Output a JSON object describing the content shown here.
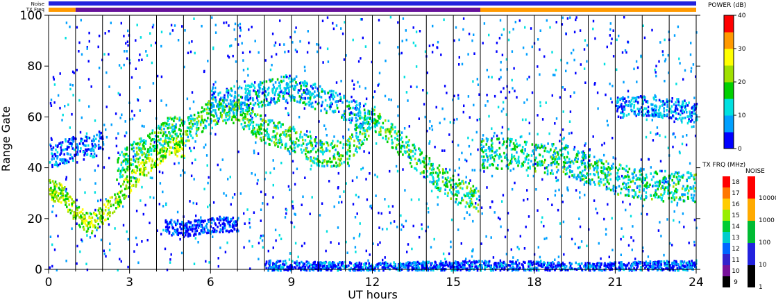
{
  "chart_data": {
    "type": "heatmap",
    "xlabel": "UT hours",
    "ylabel": "Range Gate",
    "xlim": [
      0,
      24
    ],
    "ylim": [
      0,
      100
    ],
    "x_ticks": [
      0,
      3,
      6,
      9,
      12,
      15,
      18,
      21,
      24
    ],
    "x_tick_labels": [
      "0",
      "3",
      "6",
      "9",
      "12",
      "15",
      "18",
      "21",
      "24"
    ],
    "y_ticks": [
      0,
      20,
      40,
      60,
      80,
      100
    ],
    "y_tick_labels": [
      "0",
      "20",
      "40",
      "60",
      "80",
      "100"
    ],
    "grid_vertical_hours": [
      1,
      2,
      3,
      4,
      5,
      6,
      7,
      8,
      9,
      10,
      11,
      12,
      13,
      14,
      15,
      16,
      17,
      18,
      19,
      20,
      21,
      22,
      23
    ],
    "strips": {
      "noise_label": "Noise",
      "txfreq_label": "TX Freq",
      "noise_color": "#2222dd",
      "txfreq_segments": [
        {
          "start": 0,
          "end": 1,
          "color": "#ff9900"
        },
        {
          "start": 1,
          "end": 16,
          "color": "#661199"
        },
        {
          "start": 16,
          "end": 24,
          "color": "#ff9900"
        }
      ]
    },
    "scatter_bands": [
      {
        "name": "",
        "points": [
          [
            0,
            32
          ],
          [
            0.5,
            30
          ],
          [
            1,
            22
          ],
          [
            1.5,
            18
          ],
          [
            2,
            22
          ],
          [
            2.5,
            28
          ],
          [
            3,
            35
          ],
          [
            3.5,
            40
          ],
          [
            4,
            45
          ],
          [
            4.5,
            50
          ],
          [
            5,
            48
          ]
        ],
        "width": 4,
        "power": 22
      },
      {
        "name": "",
        "points": [
          [
            2.5,
            40
          ],
          [
            3,
            45
          ],
          [
            3.5,
            48
          ],
          [
            4,
            52
          ],
          [
            4.5,
            56
          ],
          [
            5,
            55
          ],
          [
            5.5,
            58
          ],
          [
            6,
            63
          ],
          [
            7,
            62
          ],
          [
            8,
            55
          ],
          [
            9,
            52
          ],
          [
            10,
            46
          ],
          [
            11,
            46
          ],
          [
            12,
            60
          ],
          [
            13,
            50
          ],
          [
            14,
            40
          ],
          [
            15,
            32
          ],
          [
            15.9,
            28
          ]
        ],
        "width": 5,
        "power": 16
      },
      {
        "name": "",
        "points": [
          [
            6,
            66
          ],
          [
            7,
            67
          ],
          [
            8,
            70
          ],
          [
            9,
            72
          ],
          [
            10,
            68
          ],
          [
            11,
            64
          ],
          [
            12,
            58
          ]
        ],
        "width": 5,
        "power": 10
      },
      {
        "name": "",
        "points": [
          [
            16,
            46
          ],
          [
            17,
            46
          ],
          [
            18,
            44
          ],
          [
            19,
            44
          ],
          [
            20,
            40
          ],
          [
            21,
            36
          ],
          [
            22,
            34
          ],
          [
            23,
            33
          ],
          [
            24,
            33
          ]
        ],
        "width": 6,
        "power": 14
      },
      {
        "name": "",
        "points": [
          [
            21,
            64
          ],
          [
            22,
            65
          ],
          [
            23,
            64
          ],
          [
            24,
            62
          ]
        ],
        "width": 4,
        "power": 8
      },
      {
        "name": "",
        "points": [
          [
            4.3,
            18
          ],
          [
            5,
            16
          ],
          [
            6,
            18
          ],
          [
            7,
            18
          ]
        ],
        "width": 3,
        "power": 3
      },
      {
        "name": "",
        "points": [
          [
            0,
            45
          ],
          [
            1,
            48
          ],
          [
            2,
            50
          ]
        ],
        "width": 5,
        "power": 6
      },
      {
        "name": "",
        "points": [
          [
            8,
            2
          ],
          [
            12,
            1
          ],
          [
            16,
            2
          ],
          [
            20,
            1
          ],
          [
            24,
            2
          ]
        ],
        "width": 2,
        "power": 5
      }
    ],
    "power_colorbar": {
      "title": "POWER (dB)",
      "min": 0,
      "max": 40,
      "tick_labels": [
        "0",
        "10",
        "20",
        "30",
        "40"
      ],
      "colors": [
        "#0000ff",
        "#00a0ff",
        "#00e0e0",
        "#00d000",
        "#a0e000",
        "#ffff00",
        "#ff9900",
        "#ff0000"
      ]
    },
    "txfreq_legend": {
      "title": "TX FRQ (MHz)",
      "labels": [
        "9",
        "10",
        "11",
        "12",
        "13",
        "14",
        "15",
        "16",
        "17",
        "18"
      ],
      "colors": [
        "#000000",
        "#771199",
        "#3322cc",
        "#0066ff",
        "#00cccc",
        "#00cc33",
        "#99ee00",
        "#ffcc00",
        "#ff7700",
        "#ff0000"
      ]
    },
    "noise_legend": {
      "title": "NOISE",
      "labels": [
        "1",
        "10",
        "100",
        "1000",
        "10000"
      ],
      "colors": [
        "#000000",
        "#2222dd",
        "#00bb33",
        "#ffaa00",
        "#ff0000"
      ]
    }
  }
}
